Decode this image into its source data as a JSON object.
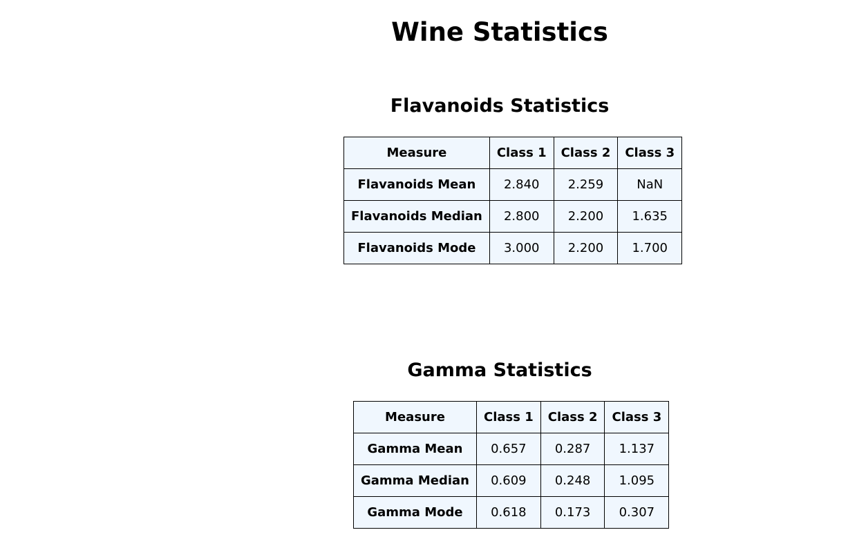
{
  "page": {
    "title": "Wine Statistics"
  },
  "flavanoids": {
    "title": "Flavanoids Statistics",
    "headers": [
      "Measure",
      "Class 1",
      "Class 2",
      "Class 3"
    ],
    "rows": [
      {
        "label": "Flavanoids Mean",
        "values": [
          "2.840",
          "2.259",
          "NaN"
        ]
      },
      {
        "label": "Flavanoids Median",
        "values": [
          "2.800",
          "2.200",
          "1.635"
        ]
      },
      {
        "label": "Flavanoids Mode",
        "values": [
          "3.000",
          "2.200",
          "1.700"
        ]
      }
    ]
  },
  "gamma": {
    "title": "Gamma Statistics",
    "headers": [
      "Measure",
      "Class 1",
      "Class 2",
      "Class 3"
    ],
    "rows": [
      {
        "label": "Gamma Mean",
        "values": [
          "0.657",
          "0.287",
          "1.137"
        ]
      },
      {
        "label": "Gamma Median",
        "values": [
          "0.609",
          "0.248",
          "1.095"
        ]
      },
      {
        "label": "Gamma Mode",
        "values": [
          "0.618",
          "0.173",
          "0.307"
        ]
      }
    ]
  },
  "colors": {
    "cell_background": "#f0f7fe",
    "border": "#000000",
    "text": "#000000"
  }
}
